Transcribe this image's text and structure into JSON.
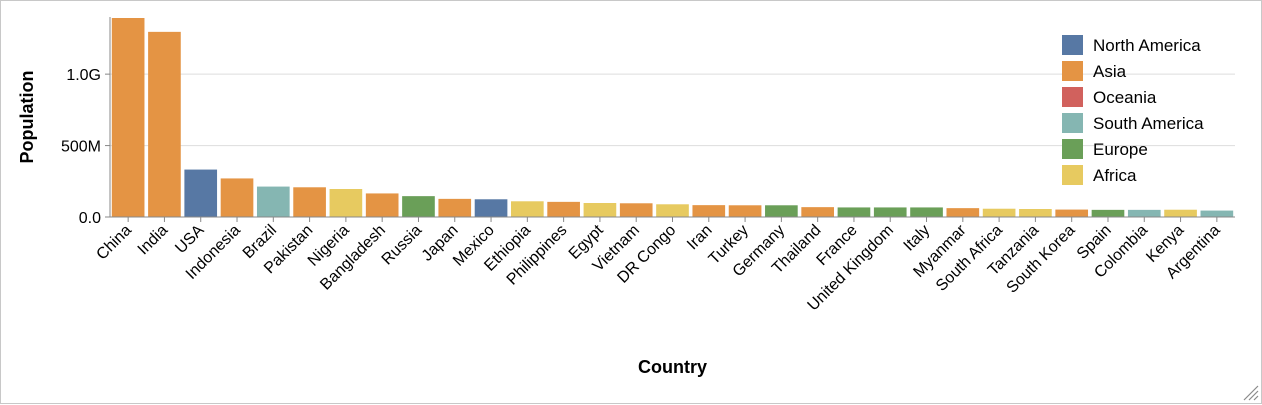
{
  "chart_data": {
    "type": "bar",
    "xlabel": "Country",
    "ylabel": "Population",
    "ylim": [
      0,
      1400000000
    ],
    "yticks": [
      {
        "value": 0,
        "label": "0.0"
      },
      {
        "value": 500000000,
        "label": "500M"
      },
      {
        "value": 1000000000,
        "label": "1.0G"
      }
    ],
    "grid": true,
    "legend_position": "top-right",
    "legend": [
      {
        "name": "North America",
        "color": "#5778a4"
      },
      {
        "name": "Asia",
        "color": "#e49444"
      },
      {
        "name": "Oceania",
        "color": "#d1615d"
      },
      {
        "name": "South America",
        "color": "#85b6b2"
      },
      {
        "name": "Europe",
        "color": "#6a9f58"
      },
      {
        "name": "Africa",
        "color": "#e7ca60"
      }
    ],
    "bars": [
      {
        "country": "China",
        "continent": "Asia",
        "value": 1393000000
      },
      {
        "country": "India",
        "continent": "Asia",
        "value": 1296000000
      },
      {
        "country": "USA",
        "continent": "North America",
        "value": 332000000
      },
      {
        "country": "Indonesia",
        "continent": "Asia",
        "value": 270000000
      },
      {
        "country": "Brazil",
        "continent": "South America",
        "value": 213000000
      },
      {
        "country": "Pakistan",
        "continent": "Asia",
        "value": 208000000
      },
      {
        "country": "Nigeria",
        "continent": "Africa",
        "value": 196000000
      },
      {
        "country": "Bangladesh",
        "continent": "Asia",
        "value": 165000000
      },
      {
        "country": "Russia",
        "continent": "Europe",
        "value": 146000000
      },
      {
        "country": "Japan",
        "continent": "Asia",
        "value": 127000000
      },
      {
        "country": "Mexico",
        "continent": "North America",
        "value": 124000000
      },
      {
        "country": "Ethiopia",
        "continent": "Africa",
        "value": 110000000
      },
      {
        "country": "Philippines",
        "continent": "Asia",
        "value": 106000000
      },
      {
        "country": "Egypt",
        "continent": "Africa",
        "value": 98000000
      },
      {
        "country": "Vietnam",
        "continent": "Asia",
        "value": 96000000
      },
      {
        "country": "DR Congo",
        "continent": "Africa",
        "value": 89000000
      },
      {
        "country": "Iran",
        "continent": "Asia",
        "value": 83000000
      },
      {
        "country": "Turkey",
        "continent": "Asia",
        "value": 82000000
      },
      {
        "country": "Germany",
        "continent": "Europe",
        "value": 82000000
      },
      {
        "country": "Thailand",
        "continent": "Asia",
        "value": 69000000
      },
      {
        "country": "France",
        "continent": "Europe",
        "value": 67000000
      },
      {
        "country": "United Kingdom",
        "continent": "Europe",
        "value": 67000000
      },
      {
        "country": "Italy",
        "continent": "Europe",
        "value": 67000000
      },
      {
        "country": "Myanmar",
        "continent": "Asia",
        "value": 62000000
      },
      {
        "country": "South Africa",
        "continent": "Africa",
        "value": 58000000
      },
      {
        "country": "Tanzania",
        "continent": "Africa",
        "value": 56000000
      },
      {
        "country": "South Korea",
        "continent": "Asia",
        "value": 52000000
      },
      {
        "country": "Spain",
        "continent": "Europe",
        "value": 50000000
      },
      {
        "country": "Colombia",
        "continent": "South America",
        "value": 50000000
      },
      {
        "country": "Kenya",
        "continent": "Africa",
        "value": 51000000
      },
      {
        "country": "Argentina",
        "continent": "South America",
        "value": 45000000
      }
    ]
  }
}
